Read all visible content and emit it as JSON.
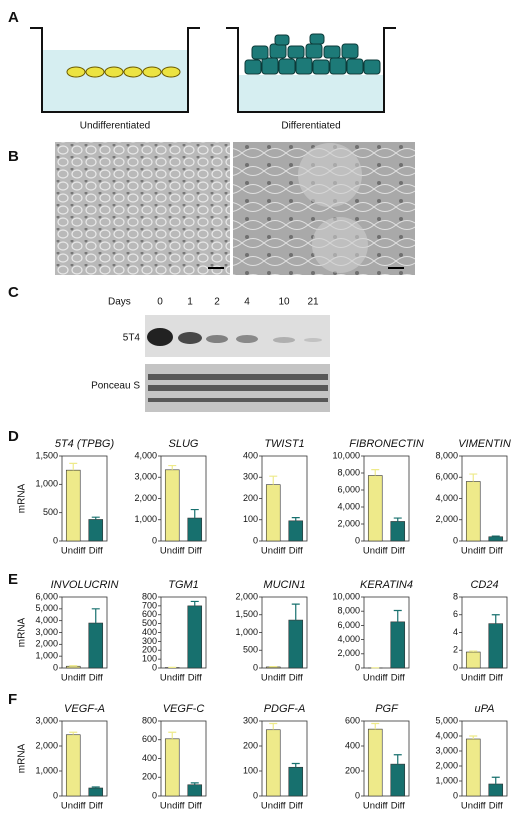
{
  "panel_labels": [
    "A",
    "B",
    "C",
    "D",
    "E",
    "F"
  ],
  "panel_a": {
    "labels": [
      "Undifferentiated",
      "Differentiated"
    ]
  },
  "panel_c": {
    "days_label": "Days",
    "days": [
      "0",
      "1",
      "2",
      "4",
      "10",
      "21"
    ],
    "rows": [
      "5T4",
      "Ponceau S"
    ]
  },
  "chart_data": [
    {
      "type": "bar",
      "title": "5T4 (TPBG)",
      "ylabel": "mRNA",
      "categories": [
        "Undiff",
        "Diff"
      ],
      "values": [
        1250,
        380
      ],
      "errors": [
        120,
        40
      ],
      "colors": [
        "#eeea8a",
        "#17706e"
      ],
      "ylim": [
        0,
        1500
      ],
      "yticks": [
        0,
        500,
        {
          "value": 1000,
          "label": "1,000"
        },
        {
          "value": 1500,
          "label": "1,500"
        }
      ]
    },
    {
      "type": "bar",
      "title": "SLUG",
      "categories": [
        "Undiff",
        "Diff"
      ],
      "values": [
        3350,
        1080
      ],
      "errors": [
        200,
        400
      ],
      "colors": [
        "#eeea8a",
        "#17706e"
      ],
      "ylim": [
        0,
        4000
      ],
      "yticks": [
        0,
        {
          "value": 1000,
          "label": "1,000"
        },
        {
          "value": 2000,
          "label": "2,000"
        },
        {
          "value": 3000,
          "label": "3,000"
        },
        {
          "value": 4000,
          "label": "4,000"
        }
      ]
    },
    {
      "type": "bar",
      "title": "TWIST1",
      "categories": [
        "Undiff",
        "Diff"
      ],
      "values": [
        265,
        95
      ],
      "errors": [
        40,
        15
      ],
      "colors": [
        "#eeea8a",
        "#17706e"
      ],
      "ylim": [
        0,
        400
      ],
      "yticks": [
        0,
        100,
        200,
        300,
        400
      ]
    },
    {
      "type": "bar",
      "title": "FIBRONECTIN",
      "categories": [
        "Undiff",
        "Diff"
      ],
      "values": [
        7700,
        2300
      ],
      "errors": [
        700,
        400
      ],
      "colors": [
        "#eeea8a",
        "#17706e"
      ],
      "ylim": [
        0,
        10000
      ],
      "yticks": [
        0,
        {
          "value": 2000,
          "label": "2,000"
        },
        {
          "value": 4000,
          "label": "4,000"
        },
        {
          "value": 6000,
          "label": "6,000"
        },
        {
          "value": 8000,
          "label": "8,000"
        },
        {
          "value": 10000,
          "label": "10,000"
        }
      ]
    },
    {
      "type": "bar",
      "title": "VIMENTIN",
      "categories": [
        "Undiff",
        "Diff"
      ],
      "values": [
        5600,
        400
      ],
      "errors": [
        700,
        60
      ],
      "colors": [
        "#eeea8a",
        "#17706e"
      ],
      "ylim": [
        0,
        8000
      ],
      "yticks": [
        0,
        {
          "value": 2000,
          "label": "2,000"
        },
        {
          "value": 4000,
          "label": "4,000"
        },
        {
          "value": 6000,
          "label": "6,000"
        },
        {
          "value": 8000,
          "label": "8,000"
        }
      ]
    },
    {
      "type": "bar",
      "title": "INVOLUCRIN",
      "ylabel": "mRNA",
      "categories": [
        "Undiff",
        "Diff"
      ],
      "values": [
        150,
        3800
      ],
      "errors": [
        40,
        1200
      ],
      "colors": [
        "#eeea8a",
        "#17706e"
      ],
      "ylim": [
        0,
        6000
      ],
      "yticks": [
        0,
        {
          "value": 1000,
          "label": "1,000"
        },
        {
          "value": 2000,
          "label": "2,000"
        },
        {
          "value": 3000,
          "label": "3,000"
        },
        {
          "value": 4000,
          "label": "4,000"
        },
        {
          "value": 5000,
          "label": "5,000"
        },
        {
          "value": 6000,
          "label": "6,000"
        }
      ]
    },
    {
      "type": "bar",
      "title": "TGM1",
      "categories": [
        "Undiff",
        "Diff"
      ],
      "values": [
        5,
        700
      ],
      "errors": [
        2,
        50
      ],
      "colors": [
        "#eeea8a",
        "#17706e"
      ],
      "ylim": [
        0,
        800
      ],
      "yticks": [
        0,
        100,
        200,
        300,
        400,
        500,
        600,
        700,
        800
      ]
    },
    {
      "type": "bar",
      "title": "MUCIN1",
      "categories": [
        "Undiff",
        "Diff"
      ],
      "values": [
        30,
        1350
      ],
      "errors": [
        10,
        450
      ],
      "colors": [
        "#eeea8a",
        "#17706e"
      ],
      "ylim": [
        0,
        2000
      ],
      "yticks": [
        0,
        500,
        {
          "value": 1000,
          "label": "1,000"
        },
        {
          "value": 1500,
          "label": "1,500"
        },
        {
          "value": 2000,
          "label": "2,000"
        }
      ]
    },
    {
      "type": "bar",
      "title": "KERATIN4",
      "categories": [
        "Undiff",
        "Diff"
      ],
      "values": [
        20,
        6500
      ],
      "errors": [
        5,
        1600
      ],
      "colors": [
        "#eeea8a",
        "#17706e"
      ],
      "ylim": [
        0,
        10000
      ],
      "yticks": [
        0,
        {
          "value": 2000,
          "label": "2,000"
        },
        {
          "value": 4000,
          "label": "4,000"
        },
        {
          "value": 6000,
          "label": "6,000"
        },
        {
          "value": 8000,
          "label": "8,000"
        },
        {
          "value": 10000,
          "label": "10,000"
        }
      ]
    },
    {
      "type": "bar",
      "title": "CD24",
      "categories": [
        "Undiff",
        "Diff"
      ],
      "values": [
        1.8,
        5.0
      ],
      "errors": [
        0.1,
        1.0
      ],
      "colors": [
        "#eeea8a",
        "#17706e"
      ],
      "ylim": [
        0,
        8
      ],
      "yticks": [
        0,
        2,
        4,
        6,
        8
      ]
    },
    {
      "type": "bar",
      "title": "VEGF-A",
      "ylabel": "mRNA",
      "categories": [
        "Undiff",
        "Diff"
      ],
      "values": [
        2450,
        320
      ],
      "errors": [
        100,
        40
      ],
      "colors": [
        "#eeea8a",
        "#17706e"
      ],
      "ylim": [
        0,
        3000
      ],
      "yticks": [
        0,
        {
          "value": 1000,
          "label": "1,000"
        },
        {
          "value": 2000,
          "label": "2,000"
        },
        {
          "value": 3000,
          "label": "3,000"
        }
      ]
    },
    {
      "type": "bar",
      "title": "VEGF-C",
      "categories": [
        "Undiff",
        "Diff"
      ],
      "values": [
        610,
        120
      ],
      "errors": [
        70,
        20
      ],
      "colors": [
        "#eeea8a",
        "#17706e"
      ],
      "ylim": [
        0,
        800
      ],
      "yticks": [
        0,
        200,
        400,
        600,
        800
      ]
    },
    {
      "type": "bar",
      "title": "PDGF-A",
      "categories": [
        "Undiff",
        "Diff"
      ],
      "values": [
        265,
        115
      ],
      "errors": [
        25,
        15
      ],
      "colors": [
        "#eeea8a",
        "#17706e"
      ],
      "ylim": [
        0,
        300
      ],
      "yticks": [
        0,
        100,
        200,
        300
      ]
    },
    {
      "type": "bar",
      "title": "PGF",
      "categories": [
        "Undiff",
        "Diff"
      ],
      "values": [
        535,
        255
      ],
      "errors": [
        45,
        75
      ],
      "colors": [
        "#eeea8a",
        "#17706e"
      ],
      "ylim": [
        0,
        600
      ],
      "yticks": [
        0,
        200,
        400,
        600
      ]
    },
    {
      "type": "bar",
      "title": "uPA",
      "categories": [
        "Undiff",
        "Diff"
      ],
      "values": [
        3800,
        800
      ],
      "errors": [
        200,
        450
      ],
      "colors": [
        "#eeea8a",
        "#17706e"
      ],
      "ylim": [
        0,
        5000
      ],
      "yticks": [
        0,
        {
          "value": 1000,
          "label": "1,000"
        },
        {
          "value": 2000,
          "label": "2,000"
        },
        {
          "value": 3000,
          "label": "3,000"
        },
        {
          "value": 4000,
          "label": "4,000"
        },
        {
          "value": 5000,
          "label": "5,000"
        }
      ]
    }
  ]
}
